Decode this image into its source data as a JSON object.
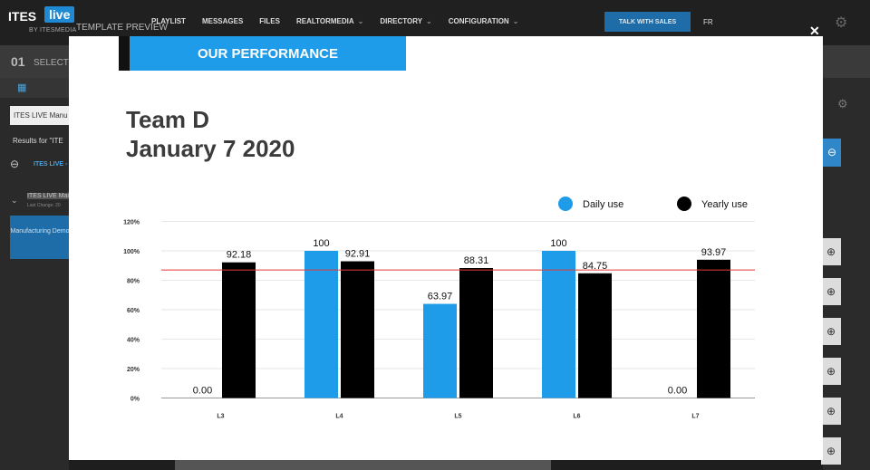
{
  "app": {
    "logo_ites": "ITES",
    "logo_live": "live",
    "logo_sub": "BY ITESMEDIA",
    "template_preview": "TEMPLATE PREVIEW",
    "nav": [
      "PLAYLIST",
      "MESSAGES",
      "FILES",
      "REALTORMEDIA",
      "DIRECTORY",
      "CONFIGURATION"
    ],
    "talk_label": "TALK WITH SALES",
    "lang": "FR",
    "step_num": "01",
    "step_label": "SELECT A",
    "select_value": "ITES LIVE Manu",
    "results_text": "Results for \"ITE",
    "ites_live_row": "ITES LIVE -",
    "ites_main": "ITES LIVE Main",
    "last_change": "Last Change: 20",
    "card_label": "Manufacturing Demo",
    "accent_color": "#1e9be9"
  },
  "modal": {
    "header": "OUR PERFORMANCE",
    "title_line1": "Team D",
    "title_line2": "January 7 2020",
    "close_label": "✕"
  },
  "chart_data": {
    "type": "bar",
    "categories": [
      "L3",
      "L4",
      "L5",
      "L6",
      "L7"
    ],
    "series": [
      {
        "name": "Daily use",
        "color": "#1e9be9",
        "values": [
          0.0,
          100,
          63.97,
          100,
          0.0
        ],
        "labels": [
          "0.00",
          "100",
          "63.97",
          "100",
          "0.00"
        ]
      },
      {
        "name": "Yearly use",
        "color": "#000000",
        "values": [
          92.18,
          92.91,
          88.31,
          84.75,
          93.97
        ],
        "labels": [
          "92.18",
          "92.91",
          "88.31",
          "84.75",
          "93.97"
        ]
      }
    ],
    "yticks": [
      "0%",
      "20%",
      "40%",
      "60%",
      "80%",
      "100%",
      "120%"
    ],
    "ylim": [
      0,
      120
    ],
    "reference_line": 87,
    "reference_color": "#e53935",
    "legend": "top-right",
    "grid": true
  }
}
